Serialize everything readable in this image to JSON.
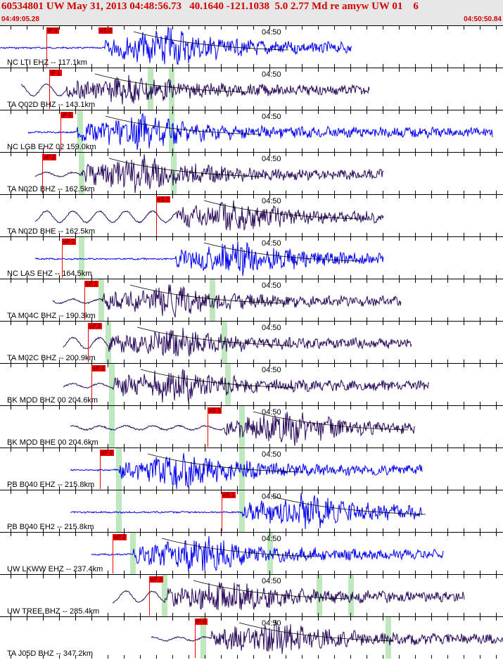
{
  "header": {
    "title": "60534801 UW May 31, 2013 04:48:56.73   40.1640 -121.1038  5.0 2.77 Md re amyw UW 01    6",
    "start_time": "04:49:05.28",
    "end_time": "04:50:50.84"
  },
  "colors": {
    "blue": "#0000ee",
    "purple": "#2a0a5a",
    "red": "#ee0000",
    "green": "#bfe8bf"
  },
  "time_tick_label": "04:50",
  "traces": [
    {
      "label": "NC LTI EHZ -- 117.1km",
      "color": "blue",
      "pick": "iP 0",
      "pick2": "eS 2"
    },
    {
      "label": "TA Q02D BHZ -- 143.1km",
      "color": "purple",
      "pick": "iP 1"
    },
    {
      "label": "NC LGB EHZ 02 159.0km",
      "color": "blue",
      "pick": "iP 0"
    },
    {
      "label": "TA N02D BHZ -- 162.5km",
      "color": "purple",
      "pick": "eP 2"
    },
    {
      "label": "TA N02D BHE -- 162.5km",
      "color": "purple",
      "pick": "eS 2"
    },
    {
      "label": "NC LAS EHZ -- 164.5km",
      "color": "blue",
      "pick": "eP 2"
    },
    {
      "label": "TA M04C BHZ -- 190.3km",
      "color": "purple",
      "pick": "eP 1"
    },
    {
      "label": "TA M02C BHZ -- 200.9km",
      "color": "purple",
      "pick": "eP 2"
    },
    {
      "label": "BK MOD BHZ 00 204.6km",
      "color": "purple",
      "pick": "eP 2"
    },
    {
      "label": "BK MOD BHE 00 204.6km",
      "color": "purple",
      "pick": "eS 1"
    },
    {
      "label": "PB B040 EHZ -- 215.8km",
      "color": "blue",
      "pick": "eP 2"
    },
    {
      "label": "PB B040 EH2 -- 215.8km",
      "color": "blue",
      "pick": "eS 1"
    },
    {
      "label": "UW LKWW EHZ -- 237.4km",
      "color": "blue",
      "pick": "eP 2"
    },
    {
      "label": "UW TREE BHZ -- 285.4km",
      "color": "purple",
      "pick": "eP 2"
    },
    {
      "label": "TA J05D BHZ -- 347.2km",
      "color": "purple",
      "pick": "iP 0"
    }
  ]
}
